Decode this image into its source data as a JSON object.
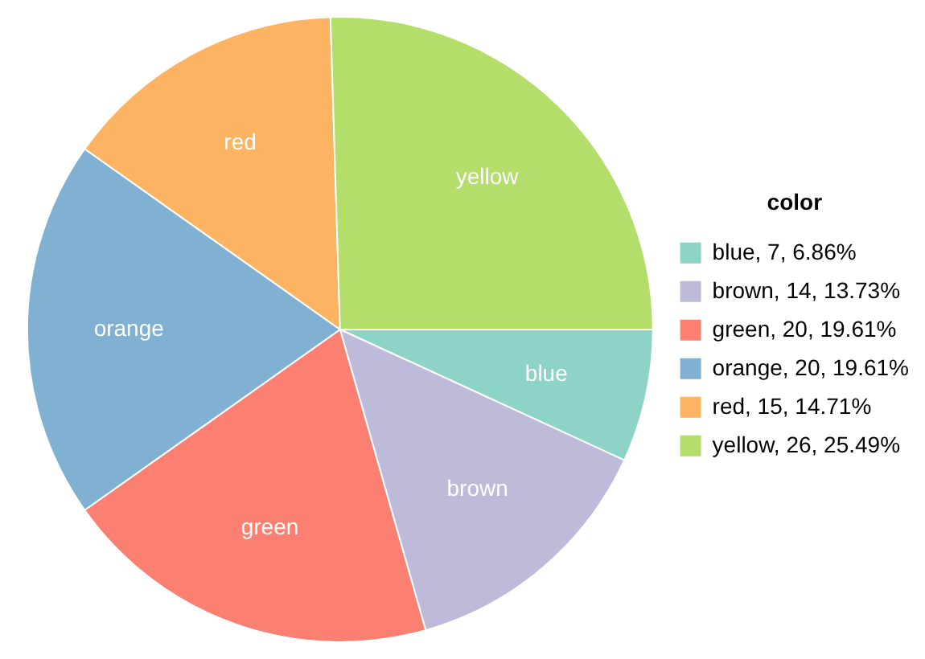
{
  "chart_data": {
    "type": "pie",
    "legend_title": "color",
    "legend": "right",
    "categories": [
      "blue, 7, 6.86%",
      "brown, 14, 13.73%",
      "green, 20, 19.61%",
      "orange, 20, 19.61%",
      "red, 15, 14.71%",
      "yellow, 26, 25.49%"
    ],
    "values": [
      7,
      14,
      20,
      20,
      15,
      26
    ],
    "value_labels": [
      "blue",
      "brown",
      "green",
      "orange",
      "red",
      "yellow"
    ],
    "colors": [
      "#8dd3c7",
      "#bebada",
      "#fb8072",
      "#80b1d3",
      "#fdb462",
      "#b3de69"
    ]
  }
}
